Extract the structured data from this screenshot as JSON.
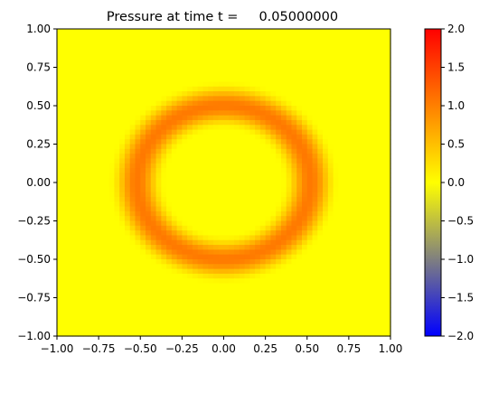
{
  "chart_data": {
    "type": "heatmap",
    "title": "Pressure at time t =     0.05000000",
    "xlabel": "",
    "ylabel": "",
    "xlim": [
      -1.0,
      1.0
    ],
    "ylim": [
      -1.0,
      1.0
    ],
    "grid": false,
    "x_ticks": [
      -1.0,
      -0.75,
      -0.5,
      -0.25,
      0.0,
      0.25,
      0.5,
      0.75,
      1.0
    ],
    "x_tick_labels": [
      "−1.00",
      "−0.75",
      "−0.50",
      "−0.25",
      "0.00",
      "0.25",
      "0.50",
      "0.75",
      "1.00"
    ],
    "y_ticks": [
      1.0,
      0.75,
      0.5,
      0.25,
      0.0,
      -0.25,
      -0.5,
      -0.75,
      -1.0
    ],
    "y_tick_labels": [
      "1.00",
      "0.75",
      "0.50",
      "0.25",
      "0.00",
      "−0.25",
      "−0.50",
      "−0.75",
      "−1.00"
    ],
    "colorbar": {
      "min": -2.0,
      "max": 2.0,
      "ticks": [
        2.0,
        1.5,
        1.0,
        0.5,
        0.0,
        -0.5,
        -1.0,
        -1.5,
        -2.0
      ],
      "tick_labels": [
        "2.0",
        "1.5",
        "1.0",
        "0.5",
        "0.0",
        "−0.5",
        "−1.0",
        "−1.5",
        "−2.0"
      ],
      "colors": [
        {
          "value": -2.0,
          "color": "#0000ff"
        },
        {
          "value": 0.0,
          "color": "#ffff00"
        },
        {
          "value": 2.0,
          "color": "#ff0000"
        }
      ]
    },
    "field": {
      "grid_n": 64,
      "background_value": 0.0,
      "ring": {
        "center": [
          0.0,
          0.0
        ],
        "radius_x": 0.52,
        "radius_y": 0.5,
        "half_width": 0.17,
        "peak_value": 1.05,
        "falloff_power": 2
      }
    }
  }
}
